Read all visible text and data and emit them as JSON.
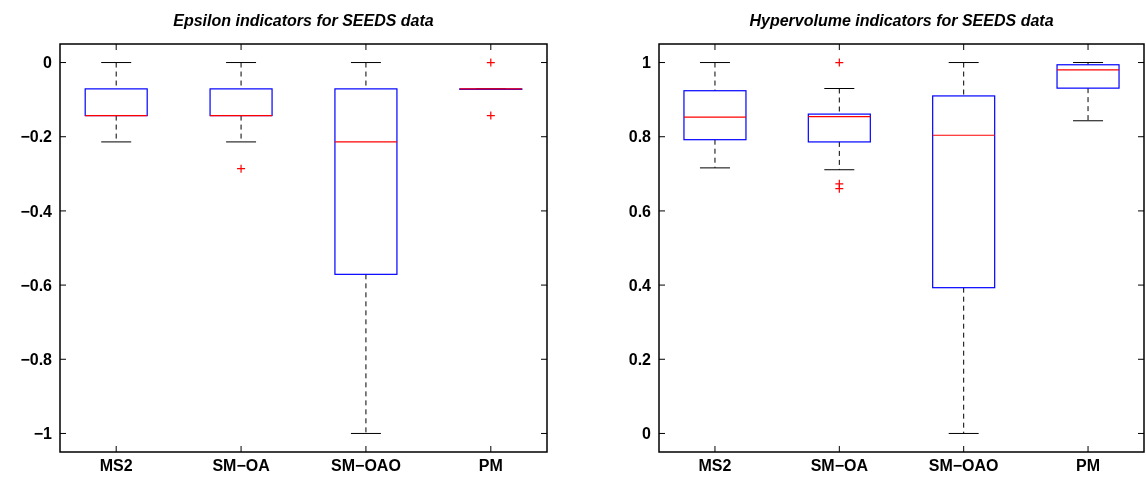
{
  "chart_data": [
    {
      "type": "box",
      "title": "Epsilon indicators for SEEDS data",
      "categories": [
        "MS2",
        "SM−OA",
        "SM−OAO",
        "PM"
      ],
      "color": "#0000ff",
      "marker": "cross",
      "ylim": [
        -1.05,
        0.05
      ],
      "yticks": [
        {
          "value": -1,
          "label": "−1"
        },
        {
          "value": -0.8,
          "label": "−0.8"
        },
        {
          "value": -0.6,
          "label": "−0.6"
        },
        {
          "value": -0.4,
          "label": "−0.4"
        },
        {
          "value": -0.2,
          "label": "−0.2"
        },
        0
      ],
      "boxes": [
        {
          "low": -0.214,
          "q1": -0.143,
          "median": -0.143,
          "q3": -0.071,
          "high": 0
        },
        {
          "low": -0.214,
          "q1": -0.143,
          "median": -0.143,
          "q3": -0.071,
          "high": 0,
          "outliers": [
            -0.286
          ]
        },
        {
          "low": -1,
          "q1": -0.571,
          "median": -0.214,
          "q3": -0.071,
          "high": 0
        },
        {
          "low": -0.071,
          "q1": -0.071,
          "median": -0.071,
          "q3": -0.071,
          "high": -0.071,
          "outliers": [
            0,
            -0.143
          ]
        }
      ]
    },
    {
      "type": "box",
      "title": "Hypervolume indicators for SEEDS data",
      "categories": [
        "MS2",
        "SM−OA",
        "SM−OAO",
        "PM"
      ],
      "color": "#0000ff",
      "marker": "cross",
      "ylim": [
        -0.05,
        1.05
      ],
      "yticks": [
        0,
        0.2,
        0.4,
        0.6,
        0.8,
        1
      ],
      "boxes": [
        {
          "low": 0.716,
          "q1": 0.792,
          "median": 0.853,
          "q3": 0.924,
          "high": 1
        },
        {
          "low": 0.711,
          "q1": 0.786,
          "median": 0.854,
          "q3": 0.861,
          "high": 0.93,
          "outliers": [
            1,
            0.673,
            0.66
          ]
        },
        {
          "low": 0,
          "q1": 0.393,
          "median": 0.804,
          "q3": 0.91,
          "high": 1
        },
        {
          "low": 0.843,
          "q1": 0.931,
          "median": 0.98,
          "q3": 0.994,
          "high": 1
        }
      ]
    }
  ]
}
